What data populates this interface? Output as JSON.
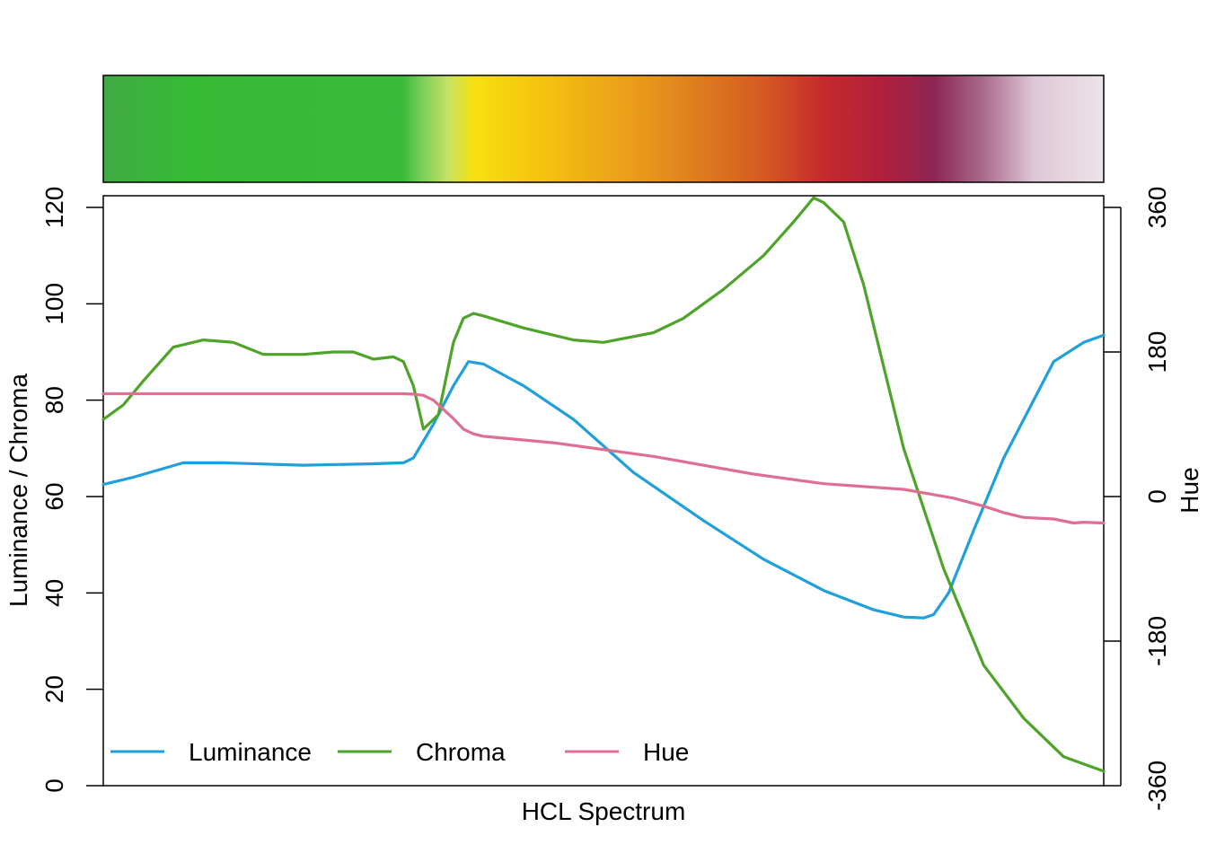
{
  "chart_data": {
    "type": "line",
    "title": "",
    "xlabel": "HCL Spectrum",
    "ylabel_left": "Luminance / Chroma",
    "ylabel_right": "Hue",
    "ylim_left": [
      0,
      122
    ],
    "ylim_right": [
      -360,
      360
    ],
    "xlim": [
      0,
      1
    ],
    "y_ticks_left": [
      "0",
      "20",
      "40",
      "60",
      "80",
      "100",
      "120"
    ],
    "y_ticks_right": [
      "-360",
      "-180",
      "0",
      "180",
      "360"
    ],
    "grid": false,
    "legend_position": "bottom",
    "legend": [
      "Luminance",
      "Chroma",
      "Hue"
    ],
    "colors": {
      "luminance": "#1f9fdc",
      "chroma": "#4ea329",
      "hue": "#df6f92"
    },
    "spectrum_stops": [
      {
        "t": 0.0,
        "color": "#43a945"
      },
      {
        "t": 0.08,
        "color": "#35ba34"
      },
      {
        "t": 0.3,
        "color": "#3bbb3b"
      },
      {
        "t": 0.315,
        "color": "#6fcb55"
      },
      {
        "t": 0.345,
        "color": "#c7e267"
      },
      {
        "t": 0.37,
        "color": "#f6e010"
      },
      {
        "t": 0.44,
        "color": "#f5c20f"
      },
      {
        "t": 0.54,
        "color": "#e8981c"
      },
      {
        "t": 0.66,
        "color": "#d45a22"
      },
      {
        "t": 0.72,
        "color": "#c62a2e"
      },
      {
        "t": 0.78,
        "color": "#b01f3c"
      },
      {
        "t": 0.83,
        "color": "#8d2553"
      },
      {
        "t": 0.88,
        "color": "#aa6b8c"
      },
      {
        "t": 0.93,
        "color": "#dec7d5"
      },
      {
        "t": 1.0,
        "color": "#ede3ea"
      }
    ],
    "series": [
      {
        "name": "Luminance",
        "axis": "left",
        "x": [
          0,
          0.03,
          0.08,
          0.12,
          0.2,
          0.27,
          0.3,
          0.31,
          0.33,
          0.35,
          0.365,
          0.38,
          0.42,
          0.47,
          0.53,
          0.6,
          0.66,
          0.72,
          0.77,
          0.8,
          0.82,
          0.83,
          0.845,
          0.87,
          0.9,
          0.95,
          0.98,
          1.0
        ],
        "values": [
          62.5,
          64,
          67,
          67,
          66.5,
          66.8,
          67,
          68,
          75,
          83,
          88,
          87.5,
          83,
          76,
          65,
          55,
          47,
          40.5,
          36.5,
          35,
          34.8,
          35.5,
          40,
          53,
          68,
          88,
          92,
          93.5
        ]
      },
      {
        "name": "Chroma",
        "axis": "left",
        "x": [
          0,
          0.02,
          0.04,
          0.07,
          0.1,
          0.13,
          0.16,
          0.2,
          0.23,
          0.25,
          0.27,
          0.29,
          0.3,
          0.31,
          0.32,
          0.335,
          0.35,
          0.36,
          0.37,
          0.38,
          0.42,
          0.47,
          0.5,
          0.55,
          0.58,
          0.62,
          0.66,
          0.69,
          0.71,
          0.72,
          0.74,
          0.76,
          0.8,
          0.84,
          0.88,
          0.92,
          0.96,
          0.98,
          1.0
        ],
        "values": [
          76,
          79,
          84,
          91,
          92.5,
          92,
          89.5,
          89.5,
          90,
          90,
          88.5,
          89,
          88,
          83,
          74,
          77,
          92,
          97,
          98,
          97.5,
          95,
          92.5,
          92,
          94,
          97,
          103,
          110,
          117,
          122,
          121,
          117,
          104,
          70,
          45,
          25,
          14,
          6,
          4.5,
          3
        ]
      },
      {
        "name": "Hue",
        "axis": "right",
        "x": [
          0,
          0.1,
          0.2,
          0.3,
          0.31,
          0.32,
          0.33,
          0.35,
          0.36,
          0.37,
          0.38,
          0.45,
          0.55,
          0.65,
          0.72,
          0.8,
          0.85,
          0.88,
          0.9,
          0.92,
          0.95,
          0.97,
          0.98,
          1.0
        ],
        "values": [
          128,
          128,
          128,
          128,
          127.5,
          126,
          120,
          97,
          84,
          78,
          75,
          67,
          50,
          28,
          16,
          9,
          -2,
          -12,
          -20,
          -26,
          -28,
          -33,
          -32,
          -33
        ]
      }
    ]
  }
}
